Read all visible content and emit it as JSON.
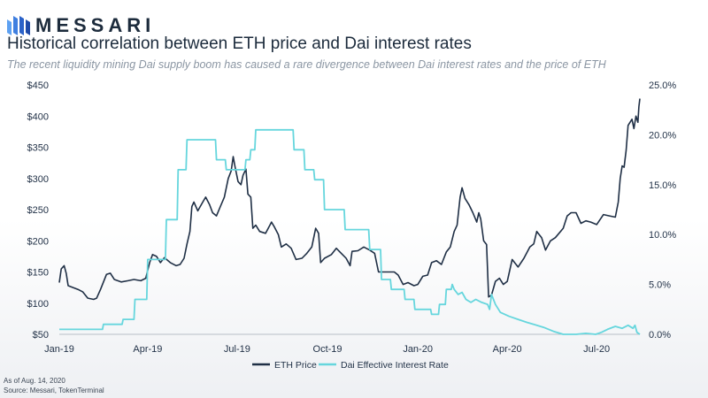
{
  "brand": {
    "name": "MESSARI",
    "logo_icon": "messari-logo-icon",
    "color": "#1c2b3c"
  },
  "title": "Historical correlation between ETH price and Dai interest rates",
  "subtitle": "The recent liquidity mining Dai supply boom has caused a rare divergence between Dai interest rates and the price of ETH",
  "footnotes": {
    "date": "As of Aug. 14, 2020",
    "source": "Source: Messari, TokenTerminal"
  },
  "chart_data": {
    "type": "line",
    "title": "Historical correlation between ETH price and Dai interest rates",
    "x_axis": {
      "type": "date",
      "range": [
        "2019-01-01",
        "2020-08-14"
      ],
      "tick_labels": [
        {
          "date": "2019-01-01",
          "label": "Jan-19"
        },
        {
          "date": "2019-04-01",
          "label": "Apr-19"
        },
        {
          "date": "2019-07-01",
          "label": "Jul-19"
        },
        {
          "date": "2019-10-01",
          "label": "Oct-19"
        },
        {
          "date": "2020-01-01",
          "label": "Jan-20"
        },
        {
          "date": "2020-04-01",
          "label": "Apr-20"
        },
        {
          "date": "2020-07-01",
          "label": "Jul-20"
        }
      ]
    },
    "y_left": {
      "ylim": [
        50,
        450
      ],
      "ticks": [
        50,
        100,
        150,
        200,
        250,
        300,
        350,
        400,
        450
      ],
      "tick_labels": [
        "$50",
        "$100",
        "$150",
        "$200",
        "$250",
        "$300",
        "$350",
        "$400",
        "$450"
      ]
    },
    "y_right": {
      "ylim": [
        0,
        25
      ],
      "ticks": [
        0,
        5,
        10,
        15,
        20,
        25
      ],
      "tick_labels": [
        "0.0%",
        "5.0%",
        "10.0%",
        "15.0%",
        "20.0%",
        "25.0%"
      ]
    },
    "grid": false,
    "legend_position": "bottom-center",
    "series": [
      {
        "name": "ETH Price",
        "axis": "left",
        "color": "#1f2f45",
        "points": [
          [
            "2019-01-01",
            133
          ],
          [
            "2019-01-03",
            155
          ],
          [
            "2019-01-06",
            160
          ],
          [
            "2019-01-08",
            148
          ],
          [
            "2019-01-10",
            128
          ],
          [
            "2019-01-15",
            125
          ],
          [
            "2019-01-20",
            122
          ],
          [
            "2019-01-25",
            118
          ],
          [
            "2019-01-30",
            108
          ],
          [
            "2019-02-05",
            106
          ],
          [
            "2019-02-08",
            108
          ],
          [
            "2019-02-12",
            122
          ],
          [
            "2019-02-18",
            146
          ],
          [
            "2019-02-22",
            148
          ],
          [
            "2019-02-26",
            138
          ],
          [
            "2019-03-05",
            134
          ],
          [
            "2019-03-12",
            136
          ],
          [
            "2019-03-18",
            138
          ],
          [
            "2019-03-25",
            136
          ],
          [
            "2019-03-30",
            140
          ],
          [
            "2019-04-03",
            165
          ],
          [
            "2019-04-06",
            178
          ],
          [
            "2019-04-10",
            175
          ],
          [
            "2019-04-14",
            165
          ],
          [
            "2019-04-18",
            173
          ],
          [
            "2019-04-24",
            165
          ],
          [
            "2019-04-30",
            160
          ],
          [
            "2019-05-04",
            162
          ],
          [
            "2019-05-08",
            172
          ],
          [
            "2019-05-11",
            195
          ],
          [
            "2019-05-14",
            215
          ],
          [
            "2019-05-16",
            255
          ],
          [
            "2019-05-18",
            262
          ],
          [
            "2019-05-22",
            248
          ],
          [
            "2019-05-27",
            262
          ],
          [
            "2019-05-30",
            270
          ],
          [
            "2019-06-03",
            258
          ],
          [
            "2019-06-06",
            245
          ],
          [
            "2019-06-10",
            240
          ],
          [
            "2019-06-14",
            255
          ],
          [
            "2019-06-18",
            270
          ],
          [
            "2019-06-22",
            300
          ],
          [
            "2019-06-25",
            312
          ],
          [
            "2019-06-27",
            335
          ],
          [
            "2019-06-29",
            318
          ],
          [
            "2019-07-02",
            295
          ],
          [
            "2019-07-05",
            290
          ],
          [
            "2019-07-07",
            305
          ],
          [
            "2019-07-10",
            315
          ],
          [
            "2019-07-12",
            275
          ],
          [
            "2019-07-15",
            270
          ],
          [
            "2019-07-17",
            220
          ],
          [
            "2019-07-20",
            225
          ],
          [
            "2019-07-24",
            215
          ],
          [
            "2019-07-30",
            212
          ],
          [
            "2019-08-05",
            230
          ],
          [
            "2019-08-08",
            222
          ],
          [
            "2019-08-12",
            210
          ],
          [
            "2019-08-15",
            190
          ],
          [
            "2019-08-20",
            195
          ],
          [
            "2019-08-25",
            188
          ],
          [
            "2019-08-30",
            170
          ],
          [
            "2019-09-05",
            172
          ],
          [
            "2019-09-10",
            180
          ],
          [
            "2019-09-15",
            190
          ],
          [
            "2019-09-19",
            220
          ],
          [
            "2019-09-22",
            212
          ],
          [
            "2019-09-24",
            165
          ],
          [
            "2019-09-28",
            172
          ],
          [
            "2019-10-05",
            178
          ],
          [
            "2019-10-10",
            188
          ],
          [
            "2019-10-15",
            180
          ],
          [
            "2019-10-20",
            172
          ],
          [
            "2019-10-24",
            160
          ],
          [
            "2019-10-26",
            183
          ],
          [
            "2019-11-01",
            184
          ],
          [
            "2019-11-07",
            190
          ],
          [
            "2019-11-13",
            185
          ],
          [
            "2019-11-18",
            180
          ],
          [
            "2019-11-22",
            150
          ],
          [
            "2019-11-26",
            150
          ],
          [
            "2019-12-01",
            150
          ],
          [
            "2019-12-08",
            150
          ],
          [
            "2019-12-12",
            145
          ],
          [
            "2019-12-17",
            130
          ],
          [
            "2019-12-22",
            133
          ],
          [
            "2019-12-28",
            128
          ],
          [
            "2020-01-01",
            130
          ],
          [
            "2020-01-06",
            143
          ],
          [
            "2020-01-11",
            145
          ],
          [
            "2020-01-15",
            165
          ],
          [
            "2020-01-20",
            168
          ],
          [
            "2020-01-25",
            162
          ],
          [
            "2020-01-30",
            182
          ],
          [
            "2020-02-03",
            190
          ],
          [
            "2020-02-07",
            215
          ],
          [
            "2020-02-10",
            225
          ],
          [
            "2020-02-13",
            270
          ],
          [
            "2020-02-15",
            285
          ],
          [
            "2020-02-18",
            268
          ],
          [
            "2020-02-22",
            258
          ],
          [
            "2020-02-26",
            245
          ],
          [
            "2020-03-01",
            230
          ],
          [
            "2020-03-03",
            245
          ],
          [
            "2020-03-05",
            235
          ],
          [
            "2020-03-08",
            200
          ],
          [
            "2020-03-11",
            194
          ],
          [
            "2020-03-13",
            110
          ],
          [
            "2020-03-16",
            113
          ],
          [
            "2020-03-20",
            135
          ],
          [
            "2020-03-24",
            140
          ],
          [
            "2020-03-28",
            130
          ],
          [
            "2020-04-01",
            135
          ],
          [
            "2020-04-06",
            170
          ],
          [
            "2020-04-12",
            158
          ],
          [
            "2020-04-18",
            172
          ],
          [
            "2020-04-24",
            190
          ],
          [
            "2020-04-28",
            195
          ],
          [
            "2020-05-01",
            215
          ],
          [
            "2020-05-06",
            205
          ],
          [
            "2020-05-10",
            185
          ],
          [
            "2020-05-15",
            200
          ],
          [
            "2020-05-20",
            205
          ],
          [
            "2020-05-28",
            220
          ],
          [
            "2020-06-01",
            240
          ],
          [
            "2020-06-05",
            245
          ],
          [
            "2020-06-10",
            245
          ],
          [
            "2020-06-15",
            228
          ],
          [
            "2020-06-20",
            232
          ],
          [
            "2020-06-25",
            230
          ],
          [
            "2020-07-01",
            226
          ],
          [
            "2020-07-08",
            242
          ],
          [
            "2020-07-14",
            240
          ],
          [
            "2020-07-20",
            238
          ],
          [
            "2020-07-23",
            262
          ],
          [
            "2020-07-25",
            300
          ],
          [
            "2020-07-27",
            320
          ],
          [
            "2020-07-29",
            318
          ],
          [
            "2020-07-31",
            345
          ],
          [
            "2020-08-02",
            385
          ],
          [
            "2020-08-04",
            390
          ],
          [
            "2020-08-06",
            395
          ],
          [
            "2020-08-08",
            380
          ],
          [
            "2020-08-10",
            400
          ],
          [
            "2020-08-12",
            390
          ],
          [
            "2020-08-13",
            415
          ],
          [
            "2020-08-14",
            428
          ]
        ]
      },
      {
        "name": "Dai Effective Interest Rate",
        "axis": "right",
        "color": "#66d6dd",
        "points": [
          [
            "2019-01-01",
            0.5
          ],
          [
            "2019-02-14",
            0.5
          ],
          [
            "2019-02-15",
            1.0
          ],
          [
            "2019-03-06",
            1.0
          ],
          [
            "2019-03-07",
            1.5
          ],
          [
            "2019-03-18",
            1.5
          ],
          [
            "2019-03-19",
            3.5
          ],
          [
            "2019-03-31",
            3.5
          ],
          [
            "2019-04-01",
            7.5
          ],
          [
            "2019-04-19",
            7.5
          ],
          [
            "2019-04-20",
            11.5
          ],
          [
            "2019-05-01",
            11.5
          ],
          [
            "2019-05-02",
            16.5
          ],
          [
            "2019-05-10",
            16.5
          ],
          [
            "2019-05-11",
            19.5
          ],
          [
            "2019-06-09",
            19.5
          ],
          [
            "2019-06-10",
            17.5
          ],
          [
            "2019-06-19",
            17.5
          ],
          [
            "2019-06-20",
            16.5
          ],
          [
            "2019-07-09",
            16.5
          ],
          [
            "2019-07-10",
            17.5
          ],
          [
            "2019-07-14",
            17.5
          ],
          [
            "2019-07-15",
            18.5
          ],
          [
            "2019-07-19",
            18.5
          ],
          [
            "2019-07-20",
            20.5
          ],
          [
            "2019-08-27",
            20.5
          ],
          [
            "2019-08-28",
            18.5
          ],
          [
            "2019-09-07",
            18.5
          ],
          [
            "2019-09-08",
            16.5
          ],
          [
            "2019-09-17",
            16.5
          ],
          [
            "2019-09-18",
            15.5
          ],
          [
            "2019-09-27",
            15.5
          ],
          [
            "2019-09-28",
            12.5
          ],
          [
            "2019-10-18",
            12.5
          ],
          [
            "2019-10-19",
            10.5
          ],
          [
            "2019-11-12",
            10.5
          ],
          [
            "2019-11-13",
            8.5
          ],
          [
            "2019-11-24",
            8.5
          ],
          [
            "2019-11-25",
            5.5
          ],
          [
            "2019-12-04",
            5.5
          ],
          [
            "2019-12-05",
            4.5
          ],
          [
            "2019-12-18",
            4.5
          ],
          [
            "2019-12-19",
            3.5
          ],
          [
            "2019-12-28",
            3.5
          ],
          [
            "2019-12-29",
            2.5
          ],
          [
            "2020-01-14",
            2.5
          ],
          [
            "2020-01-15",
            2.0
          ],
          [
            "2020-01-22",
            2.0
          ],
          [
            "2020-01-23",
            3.0
          ],
          [
            "2020-01-29",
            3.0
          ],
          [
            "2020-01-30",
            4.5
          ],
          [
            "2020-02-04",
            4.5
          ],
          [
            "2020-02-05",
            5.0
          ],
          [
            "2020-02-07",
            4.5
          ],
          [
            "2020-02-11",
            4.0
          ],
          [
            "2020-02-15",
            4.2
          ],
          [
            "2020-02-19",
            3.5
          ],
          [
            "2020-02-24",
            3.2
          ],
          [
            "2020-02-29",
            3.5
          ],
          [
            "2020-03-06",
            3.2
          ],
          [
            "2020-03-12",
            3.0
          ],
          [
            "2020-03-14",
            2.5
          ],
          [
            "2020-03-16",
            4.0
          ],
          [
            "2020-03-20",
            3.0
          ],
          [
            "2020-03-25",
            2.2
          ],
          [
            "2020-04-03",
            1.8
          ],
          [
            "2020-04-12",
            1.5
          ],
          [
            "2020-04-21",
            1.2
          ],
          [
            "2020-04-28",
            1.0
          ],
          [
            "2020-05-08",
            0.7
          ],
          [
            "2020-05-18",
            0.3
          ],
          [
            "2020-05-28",
            0.0
          ],
          [
            "2020-06-10",
            0.0
          ],
          [
            "2020-06-20",
            0.1
          ],
          [
            "2020-06-30",
            0.0
          ],
          [
            "2020-07-06",
            0.2
          ],
          [
            "2020-07-12",
            0.5
          ],
          [
            "2020-07-20",
            0.8
          ],
          [
            "2020-07-27",
            0.6
          ],
          [
            "2020-08-02",
            0.9
          ],
          [
            "2020-08-07",
            0.6
          ],
          [
            "2020-08-09",
            0.9
          ],
          [
            "2020-08-11",
            0.2
          ],
          [
            "2020-08-14",
            0.0
          ]
        ]
      }
    ]
  }
}
